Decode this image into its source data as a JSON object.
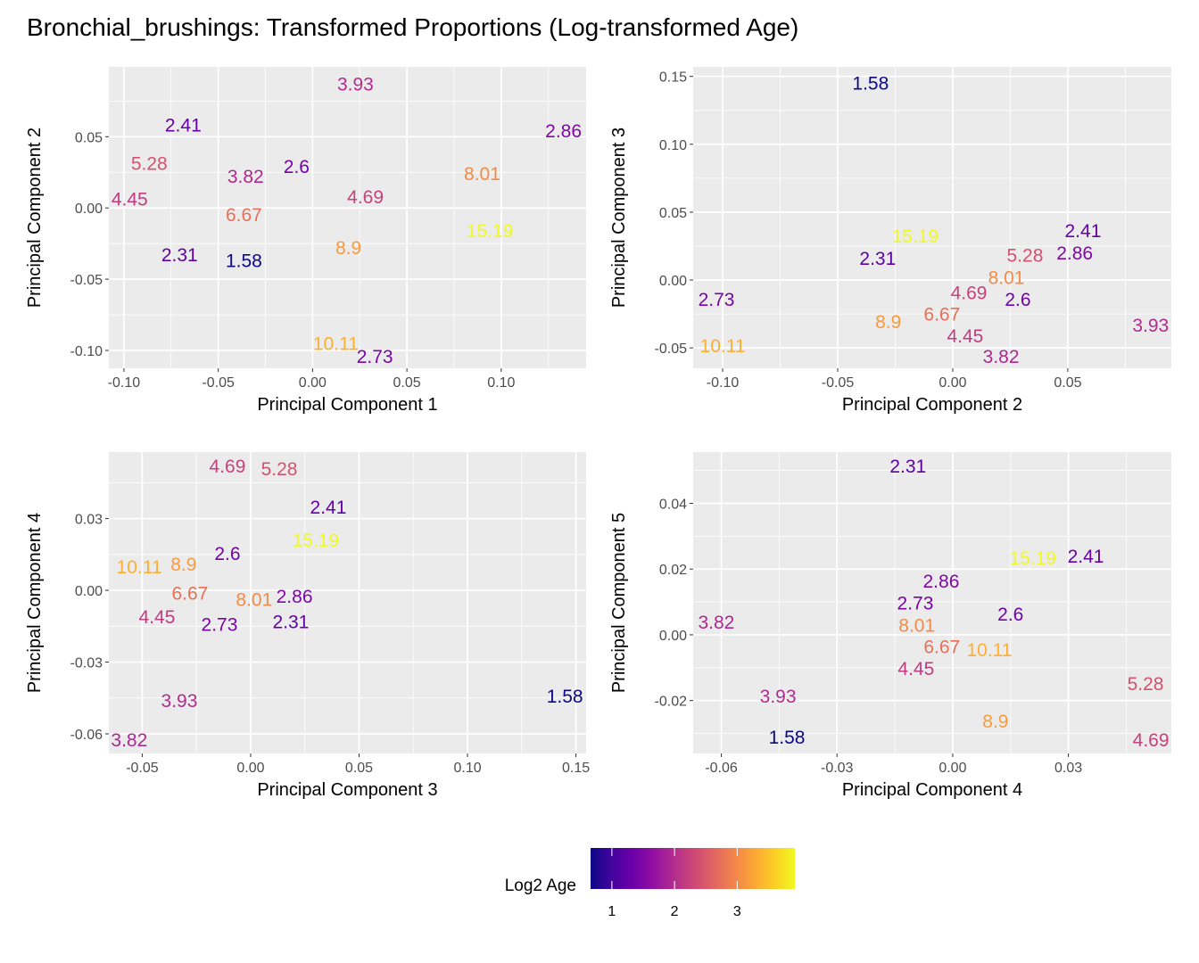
{
  "chart_data": {
    "type": "scatter",
    "title": "Bronchial_brushings: Transformed Proportions (Log-transformed Age)",
    "color_variable": "Log2 Age",
    "colorbar": {
      "title": "Log2 Age",
      "range": [
        0.66,
        3.92
      ],
      "ticks": [
        1,
        2,
        3
      ],
      "tick_labels": [
        "1",
        "2",
        "3"
      ],
      "colorscale": [
        "#0d0887",
        "#41049d",
        "#6a00a8",
        "#8f0da4",
        "#b12a90",
        "#cc4778",
        "#e16462",
        "#f2844b",
        "#fca636",
        "#fcce25",
        "#f0f921"
      ]
    },
    "panels": [
      {
        "xlabel": "Principal Component 1",
        "ylabel": "Principal Component 2",
        "xlim": [
          -0.108,
          0.145
        ],
        "ylim": [
          -0.1125,
          0.099
        ],
        "xticks": [
          -0.1,
          -0.05,
          0.0,
          0.05,
          0.1
        ],
        "xtick_labels": [
          "-0.10",
          "-0.05",
          "0.00",
          "0.05",
          "0.10"
        ],
        "yticks": [
          -0.1,
          -0.05,
          0.0,
          0.05
        ],
        "ytick_labels": [
          "-0.10",
          "-0.05",
          "0.00",
          "0.05"
        ],
        "points": [
          {
            "label": "3.93",
            "x": 0.0227,
            "y": 0.0869
          },
          {
            "label": "2.41",
            "x": -0.0686,
            "y": 0.058
          },
          {
            "label": "2.86",
            "x": 0.133,
            "y": 0.054
          },
          {
            "label": "5.28",
            "x": -0.0866,
            "y": 0.031
          },
          {
            "label": "3.82",
            "x": -0.0355,
            "y": 0.022
          },
          {
            "label": "2.6",
            "x": -0.0085,
            "y": 0.029
          },
          {
            "label": "8.01",
            "x": 0.0899,
            "y": 0.024
          },
          {
            "label": "4.45",
            "x": -0.097,
            "y": 0.006
          },
          {
            "label": "4.69",
            "x": 0.028,
            "y": 0.0075
          },
          {
            "label": "6.67",
            "x": -0.0364,
            "y": -0.005
          },
          {
            "label": "15.19",
            "x": 0.094,
            "y": -0.016
          },
          {
            "label": "2.31",
            "x": -0.0705,
            "y": -0.033
          },
          {
            "label": "1.58",
            "x": -0.0364,
            "y": -0.037
          },
          {
            "label": "8.9",
            "x": 0.019,
            "y": -0.028
          },
          {
            "label": "10.11",
            "x": 0.0123,
            "y": -0.102
          },
          {
            "label": "2.73",
            "x": 0.033,
            "y": -0.104
          }
        ]
      },
      {
        "xlabel": "Principal Component 2",
        "ylabel": "Principal Component 3",
        "xlim": [
          -0.1128,
          0.095
        ],
        "ylim": [
          -0.065,
          0.157
        ],
        "xticks": [
          -0.1,
          -0.05,
          0.0,
          0.05
        ],
        "xtick_labels": [
          "-0.10",
          "-0.05",
          "0.00",
          "0.05"
        ],
        "yticks": [
          -0.05,
          0.0,
          0.05,
          0.1,
          0.15
        ],
        "ytick_labels": [
          "-0.05",
          "0.00",
          "0.05",
          "0.10",
          "0.15"
        ],
        "points": [
          {
            "label": "1.58",
            "x": -0.0357,
            "y": 0.1447
          },
          {
            "label": "2.41",
            "x": 0.0566,
            "y": 0.036
          },
          {
            "label": "15.19",
            "x": -0.0163,
            "y": 0.0296
          },
          {
            "label": "2.31",
            "x": -0.0326,
            "y": 0.0184
          },
          {
            "label": "2.86",
            "x": 0.053,
            "y": 0.0197
          },
          {
            "label": "5.28",
            "x": 0.0314,
            "y": 0.013
          },
          {
            "label": "8.01",
            "x": 0.0233,
            "y": 0.0033
          },
          {
            "label": "2.73",
            "x": -0.1027,
            "y": -0.0145
          },
          {
            "label": "4.69",
            "x": 0.007,
            "y": -0.011
          },
          {
            "label": "2.6",
            "x": 0.0283,
            "y": -0.011
          },
          {
            "label": "6.67",
            "x": -0.0047,
            "y": -0.028
          },
          {
            "label": "8.9",
            "x": -0.028,
            "y": -0.031
          },
          {
            "label": "4.45",
            "x": 0.0054,
            "y": -0.044
          },
          {
            "label": "3.93",
            "x": 0.086,
            "y": -0.0336
          },
          {
            "label": "10.11",
            "x": -0.1,
            "y": -0.0487
          },
          {
            "label": "3.82",
            "x": 0.021,
            "y": -0.0566
          }
        ]
      },
      {
        "xlabel": "Principal Component 3",
        "ylabel": "Principal Component 4",
        "xlim": [
          -0.0654,
          0.1547
        ],
        "ylim": [
          -0.0682,
          0.0578
        ],
        "xticks": [
          -0.05,
          0.0,
          0.05,
          0.1,
          0.15
        ],
        "xtick_labels": [
          "-0.05",
          "0.00",
          "0.05",
          "0.10",
          "0.15"
        ],
        "yticks": [
          -0.06,
          -0.03,
          0.0,
          0.03
        ],
        "ytick_labels": [
          "-0.06",
          "-0.03",
          "0.00",
          "0.03"
        ],
        "points": [
          {
            "label": "4.69",
            "x": -0.0107,
            "y": 0.0518
          },
          {
            "label": "5.28",
            "x": 0.0132,
            "y": 0.0507
          },
          {
            "label": "2.41",
            "x": 0.0358,
            "y": 0.0347
          },
          {
            "label": "15.19",
            "x": 0.03,
            "y": 0.0209
          },
          {
            "label": "2.6",
            "x": -0.0107,
            "y": 0.0153
          },
          {
            "label": "10.11",
            "x": -0.0514,
            "y": 0.0097
          },
          {
            "label": "8.9",
            "x": -0.0309,
            "y": 0.0108
          },
          {
            "label": "6.67",
            "x": -0.028,
            "y": -0.003
          },
          {
            "label": "2.86",
            "x": 0.0202,
            "y": -0.003
          },
          {
            "label": "4.45",
            "x": -0.0432,
            "y": -0.01
          },
          {
            "label": "2.73",
            "x": -0.0144,
            "y": -0.01
          },
          {
            "label": "8.01",
            "x": 0.0016,
            "y": -0.0089
          },
          {
            "label": "2.31",
            "x": 0.0185,
            "y": -0.0116
          },
          {
            "label": "3.93",
            "x": -0.0329,
            "y": -0.0462
          },
          {
            "label": "1.58",
            "x": 0.1449,
            "y": -0.0444
          },
          {
            "label": "3.82",
            "x": -0.056,
            "y": -0.0626
          }
        ]
      },
      {
        "xlabel": "Principal Component 4",
        "ylabel": "Principal Component 5",
        "xlim": [
          -0.0673,
          0.0567
        ],
        "ylim": [
          -0.0361,
          0.0556
        ],
        "xticks": [
          -0.06,
          -0.03,
          0.0,
          0.03
        ],
        "xtick_labels": [
          "-0.06",
          "-0.03",
          "0.00",
          "0.03"
        ],
        "yticks": [
          -0.02,
          0.0,
          0.02,
          0.04
        ],
        "ytick_labels": [
          "-0.02",
          "0.00",
          "0.02",
          "0.04"
        ],
        "points": [
          {
            "label": "2.31",
            "x": -0.0116,
            "y": 0.0513
          },
          {
            "label": "15.19",
            "x": 0.0208,
            "y": 0.0233
          },
          {
            "label": "2.41",
            "x": 0.0345,
            "y": 0.0239
          },
          {
            "label": "2.86",
            "x": -0.003,
            "y": 0.0138
          },
          {
            "label": "2.6",
            "x": 0.015,
            "y": 0.0062
          },
          {
            "label": "3.82",
            "x": -0.0613,
            "y": 0.0038
          },
          {
            "label": "2.73",
            "x": -0.0097,
            "y": 0.0033
          },
          {
            "label": "8.01",
            "x": -0.0093,
            "y": 0.0033
          },
          {
            "label": "6.67",
            "x": -0.0028,
            "y": -0.0008
          },
          {
            "label": "4.45",
            "x": -0.0095,
            "y": -0.0049
          },
          {
            "label": "10.11",
            "x": 0.0095,
            "y": -0.0046
          },
          {
            "label": "5.28",
            "x": 0.05,
            "y": -0.0149
          },
          {
            "label": "3.93",
            "x": -0.0453,
            "y": -0.0187
          },
          {
            "label": "8.9",
            "x": 0.0111,
            "y": -0.0263
          },
          {
            "label": "1.58",
            "x": -0.043,
            "y": -0.0312
          },
          {
            "label": "4.69",
            "x": 0.0514,
            "y": -0.032
          }
        ]
      }
    ]
  }
}
